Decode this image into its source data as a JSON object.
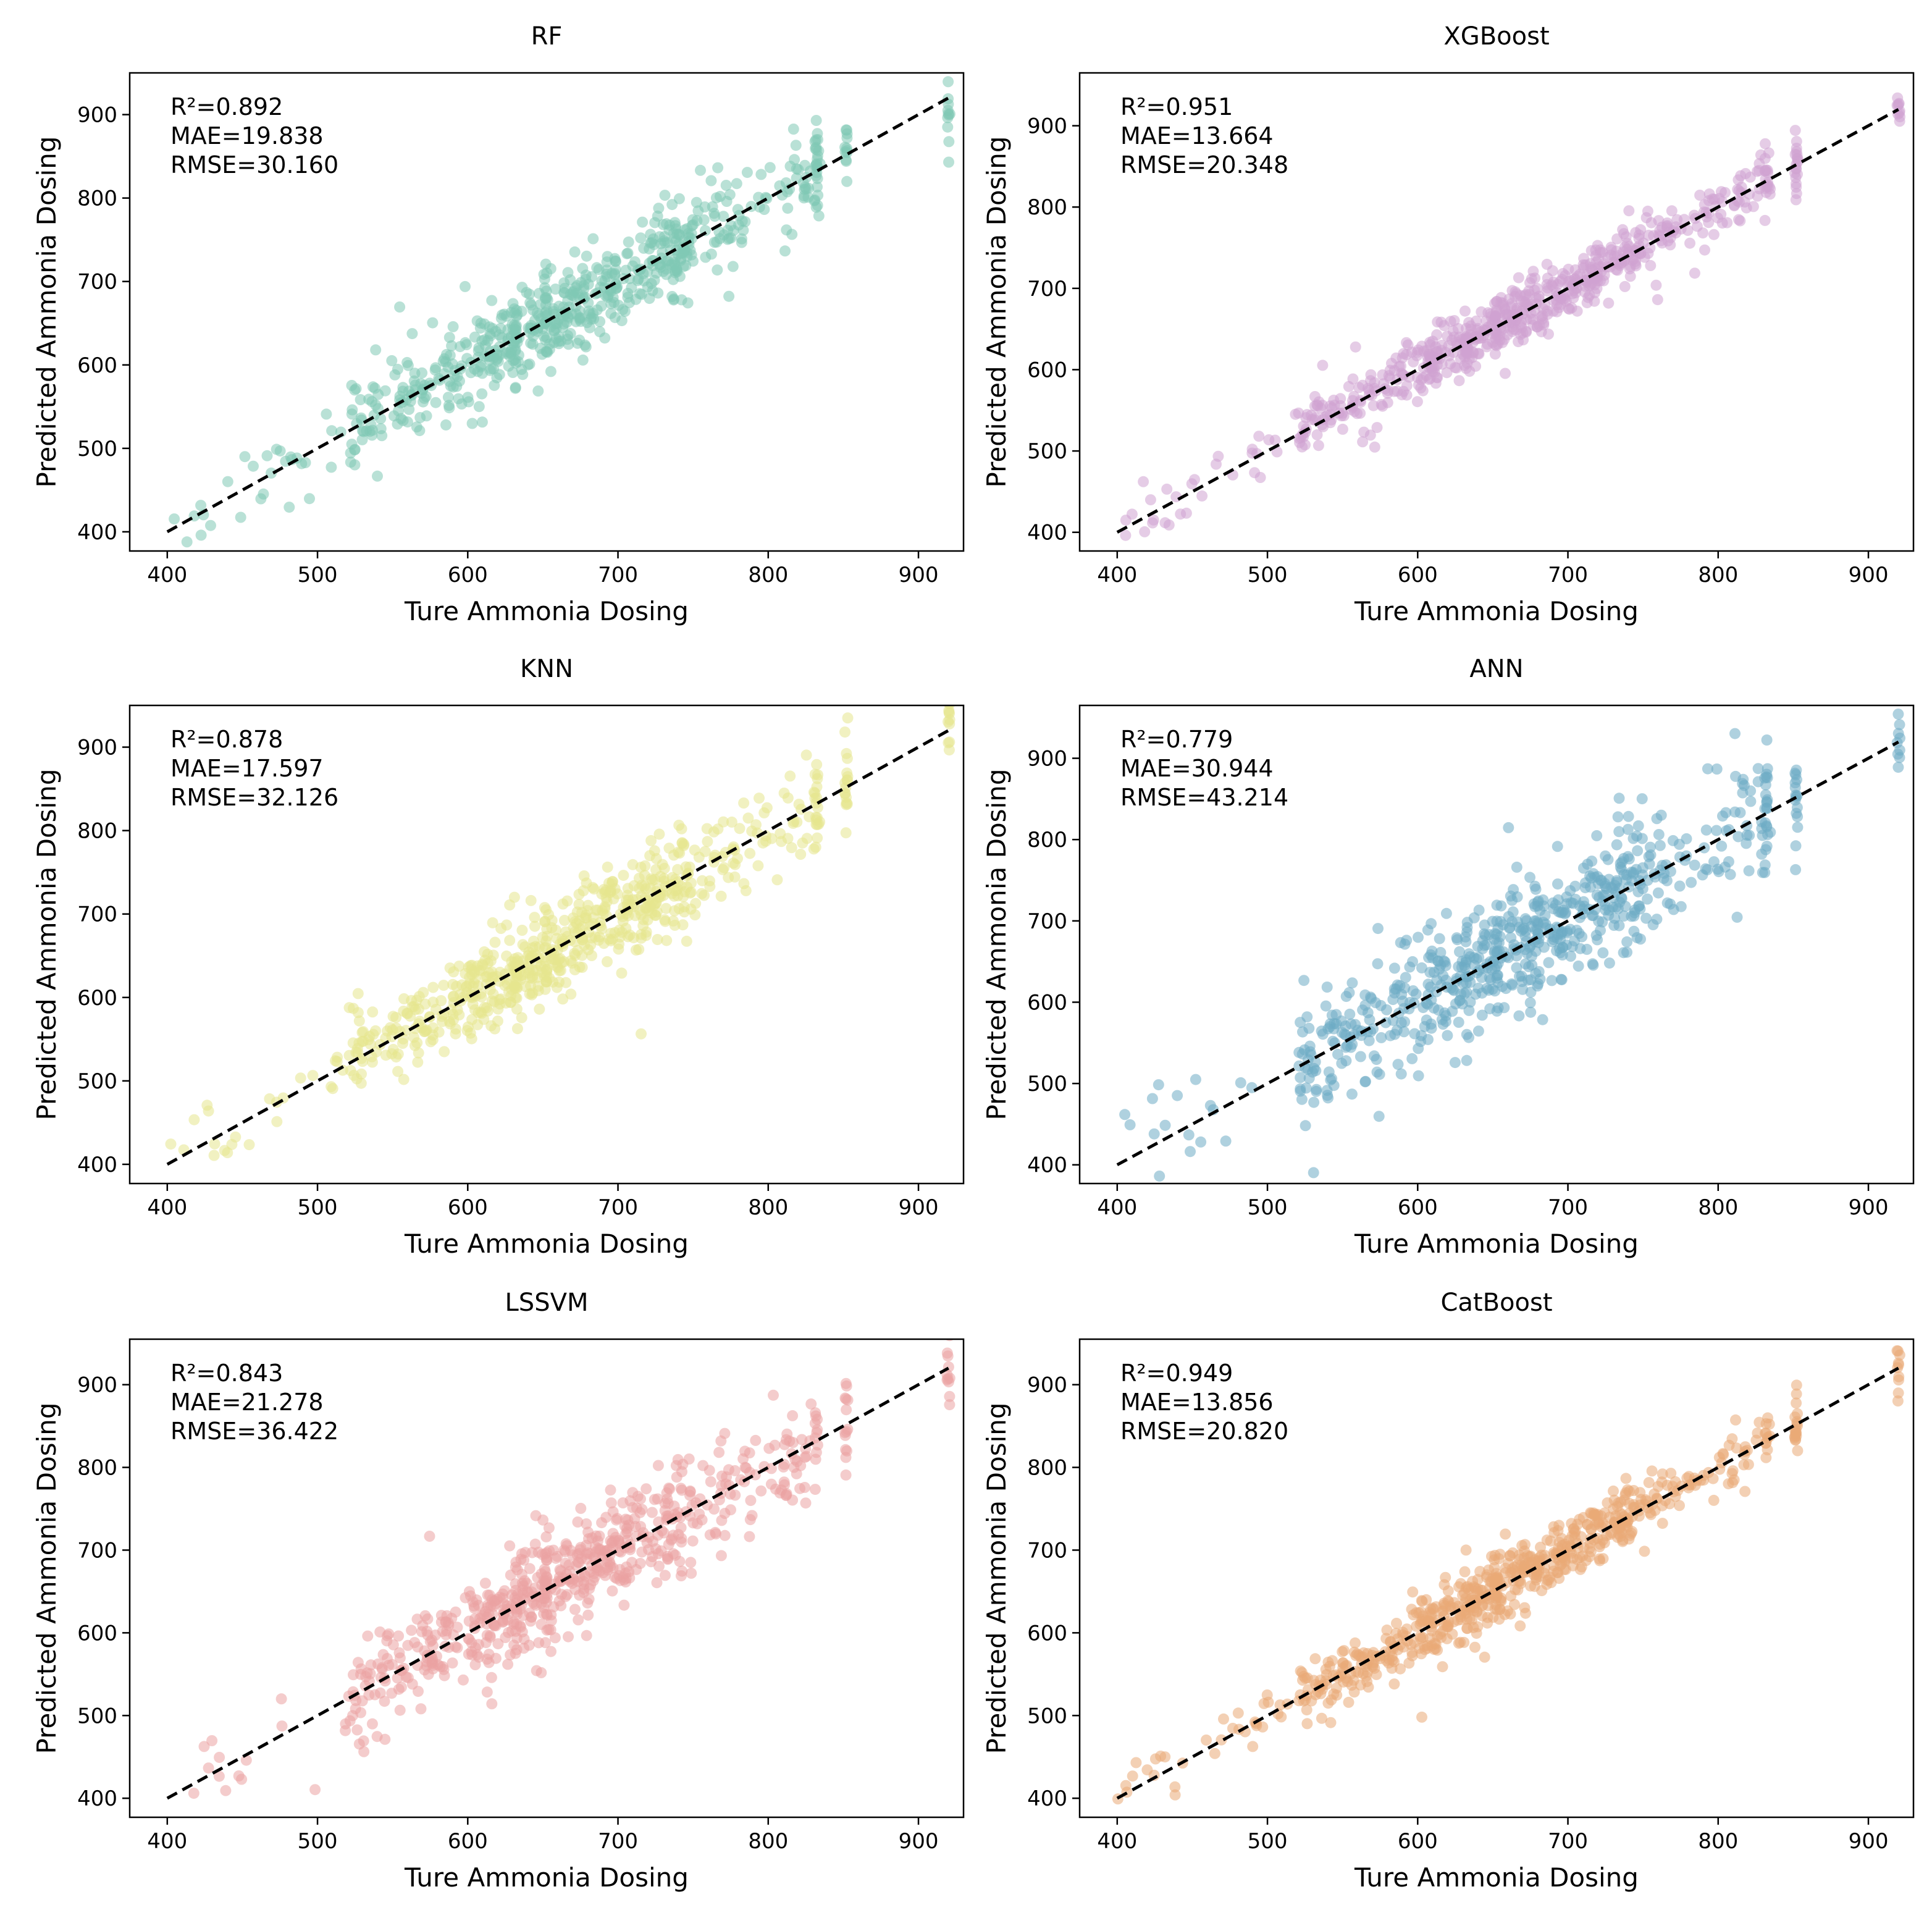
{
  "chart_data": [
    {
      "type": "scatter",
      "title": "RF",
      "xlabel": "Ture Ammonia Dosing",
      "ylabel": "Predicted Ammonia Dosing",
      "xlim": [
        375,
        930
      ],
      "ylim": [
        377,
        950
      ],
      "xticks": [
        400,
        500,
        600,
        700,
        800,
        900
      ],
      "yticks": [
        400,
        500,
        600,
        700,
        800,
        900
      ],
      "metrics": [
        "R²=0.892",
        "MAE=19.838",
        "RMSE=30.160"
      ],
      "color": "#7fc8b4",
      "reference_line": [
        400,
        920
      ],
      "r2": 0.892,
      "mae": 19.838,
      "rmse": 30.16,
      "seed": 11
    },
    {
      "type": "scatter",
      "title": "XGBoost",
      "xlabel": "Ture Ammonia Dosing",
      "ylabel": "Predicted Ammonia Dosing",
      "xlim": [
        375,
        930
      ],
      "ylim": [
        377,
        965
      ],
      "xticks": [
        400,
        500,
        600,
        700,
        800,
        900
      ],
      "yticks": [
        400,
        500,
        600,
        700,
        800,
        900
      ],
      "metrics": [
        "R²=0.951",
        "MAE=13.664",
        "RMSE=20.348"
      ],
      "color": "#cfa2d2",
      "reference_line": [
        400,
        920
      ],
      "r2": 0.951,
      "mae": 13.664,
      "rmse": 20.348,
      "seed": 23
    },
    {
      "type": "scatter",
      "title": "KNN",
      "xlabel": "Ture Ammonia Dosing",
      "ylabel": "Predicted Ammonia Dosing",
      "xlim": [
        375,
        930
      ],
      "ylim": [
        377,
        950
      ],
      "xticks": [
        400,
        500,
        600,
        700,
        800,
        900
      ],
      "yticks": [
        400,
        500,
        600,
        700,
        800,
        900
      ],
      "metrics": [
        "R²=0.878",
        "MAE=17.597",
        "RMSE=32.126"
      ],
      "color": "#e6e68e",
      "reference_line": [
        400,
        920
      ],
      "r2": 0.878,
      "mae": 17.597,
      "rmse": 32.126,
      "seed": 37
    },
    {
      "type": "scatter",
      "title": "ANN",
      "xlabel": "Ture Ammonia Dosing",
      "ylabel": "Predicted Ammonia Dosing",
      "xlim": [
        375,
        930
      ],
      "ylim": [
        377,
        965
      ],
      "xticks": [
        400,
        500,
        600,
        700,
        800,
        900
      ],
      "yticks": [
        400,
        500,
        600,
        700,
        800,
        900
      ],
      "metrics": [
        "R²=0.779",
        "MAE=30.944",
        "RMSE=43.214"
      ],
      "color": "#6eabc4",
      "reference_line": [
        400,
        920
      ],
      "r2": 0.779,
      "mae": 30.944,
      "rmse": 43.214,
      "seed": 41
    },
    {
      "type": "scatter",
      "title": "LSSVM",
      "xlabel": "Ture Ammonia Dosing",
      "ylabel": "Predicted Ammonia Dosing",
      "xlim": [
        375,
        930
      ],
      "ylim": [
        377,
        955
      ],
      "xticks": [
        400,
        500,
        600,
        700,
        800,
        900
      ],
      "yticks": [
        400,
        500,
        600,
        700,
        800,
        900
      ],
      "metrics": [
        "R²=0.843",
        "MAE=21.278",
        "RMSE=36.422"
      ],
      "color": "#eba3a3",
      "reference_line": [
        400,
        920
      ],
      "r2": 0.843,
      "mae": 21.278,
      "rmse": 36.422,
      "seed": 53
    },
    {
      "type": "scatter",
      "title": "CatBoost",
      "xlabel": "Ture Ammonia Dosing",
      "ylabel": "Predicted Ammonia Dosing",
      "xlim": [
        375,
        930
      ],
      "ylim": [
        377,
        955
      ],
      "xticks": [
        400,
        500,
        600,
        700,
        800,
        900
      ],
      "yticks": [
        400,
        500,
        600,
        700,
        800,
        900
      ],
      "metrics": [
        "R²=0.949",
        "MAE=13.856",
        "RMSE=20.820"
      ],
      "color": "#e9a976",
      "reference_line": [
        400,
        920
      ],
      "r2": 0.949,
      "mae": 13.856,
      "rmse": 20.82,
      "seed": 67
    }
  ]
}
